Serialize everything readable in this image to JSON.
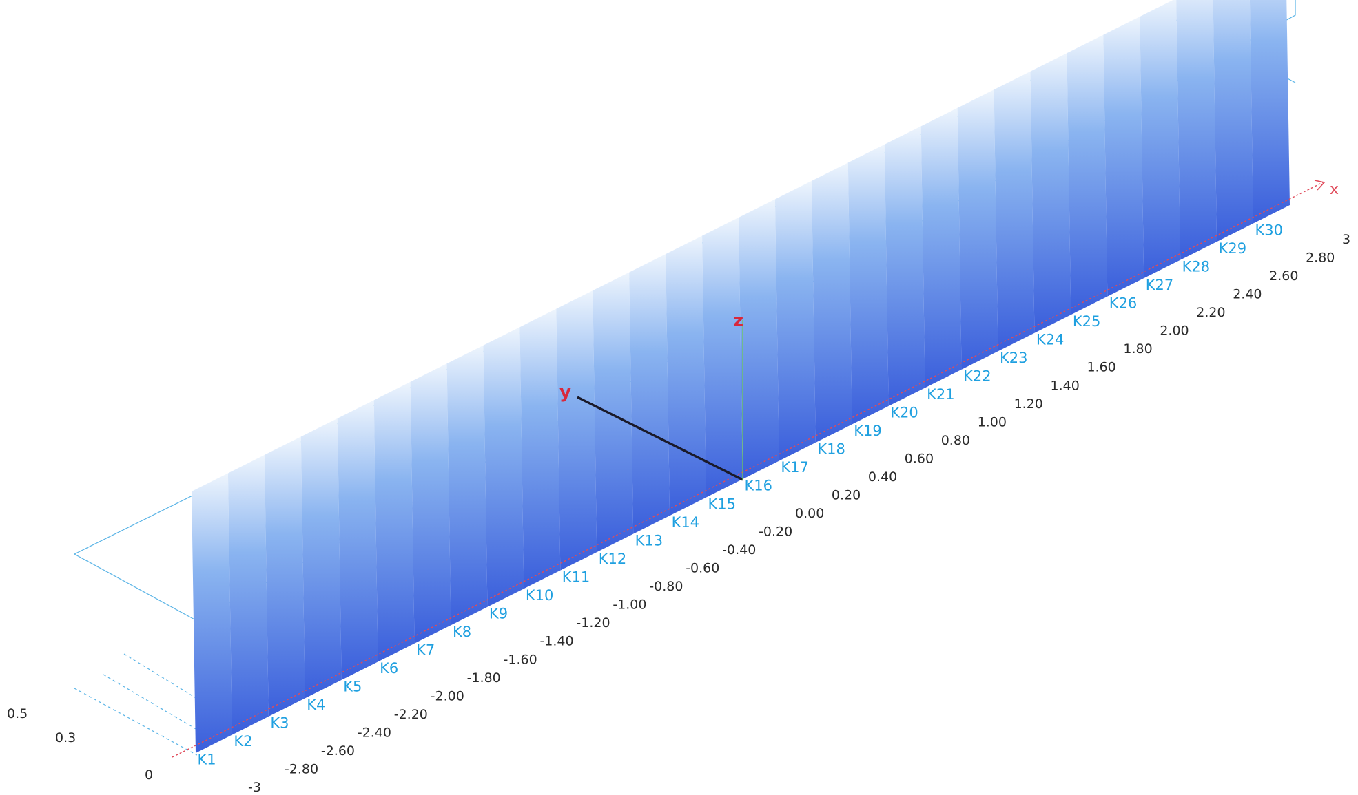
{
  "chart_data": {
    "type": "3d-bar",
    "axes": {
      "x_name": "x",
      "y_name": "y",
      "z_name": "z"
    },
    "sections": [
      "K1",
      "K2",
      "K3",
      "K4",
      "K5",
      "K6",
      "K7",
      "K8",
      "K9",
      "K10",
      "K11",
      "K12",
      "K13",
      "K14",
      "K15",
      "K16",
      "K17",
      "K18",
      "K19",
      "K20",
      "K21",
      "K22",
      "K23",
      "K24",
      "K25",
      "K26",
      "K27",
      "K28",
      "K29",
      "K30"
    ],
    "x_ticks": [
      "-3",
      "-2.80",
      "-2.60",
      "-2.40",
      "-2.20",
      "-2.00",
      "-1.80",
      "-1.60",
      "-1.40",
      "-1.20",
      "-1.00",
      "-0.80",
      "-0.60",
      "-0.40",
      "-0.20",
      "0.00",
      "0.20",
      "0.40",
      "0.60",
      "0.80",
      "1.00",
      "1.20",
      "1.40",
      "1.60",
      "1.80",
      "2.00",
      "2.20",
      "2.40",
      "2.60",
      "2.80",
      "3"
    ],
    "z_ticks": [
      "0",
      "0.3",
      "0.5"
    ],
    "section_heights": [
      1.0,
      1.0,
      1.0,
      1.0,
      1.0,
      1.0,
      1.0,
      1.0,
      1.0,
      1.0,
      1.0,
      1.0,
      1.0,
      1.0,
      1.0,
      1.0,
      1.0,
      1.0,
      1.0,
      1.0,
      1.0,
      1.0,
      1.0,
      1.0,
      1.0,
      1.0,
      1.0,
      1.0,
      1.0,
      1.0
    ],
    "colors": {
      "bar_top": "#e8f2fc",
      "bar_bottom": "#3c60dc",
      "box": "#5ab4e6",
      "x_axis": "#e04a5a",
      "section_label": "#1fa0e0"
    }
  }
}
